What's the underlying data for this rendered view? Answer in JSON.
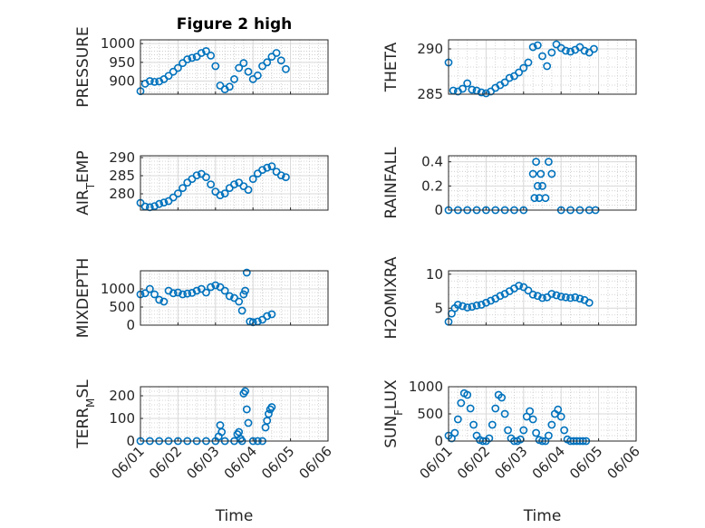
{
  "figure": {
    "title": "Figure 2 high"
  },
  "colors": {
    "marker": "#0072BD",
    "axis": "#262626",
    "grid": "#b0b0b0"
  },
  "chart_data": [
    {
      "type": "scatter",
      "id": "pressure",
      "ylabel": "PRESSURE",
      "title": "Figure 2 high",
      "ylim": [
        865,
        1010
      ],
      "yticks": [
        900,
        950,
        1000
      ],
      "x": [
        "06/01 00:00",
        "06/01 03:00",
        "06/01 06:00",
        "06/01 09:00",
        "06/01 12:00",
        "06/01 15:00",
        "06/01 18:00",
        "06/01 21:00",
        "06/02 00:00",
        "06/02 03:00",
        "06/02 06:00",
        "06/02 09:00",
        "06/02 12:00",
        "06/02 15:00",
        "06/02 18:00",
        "06/02 21:00",
        "06/03 00:00",
        "06/03 03:00",
        "06/03 06:00",
        "06/03 09:00",
        "06/03 12:00",
        "06/03 15:00",
        "06/03 18:00",
        "06/03 21:00",
        "06/04 00:00",
        "06/04 03:00",
        "06/04 06:00",
        "06/04 09:00",
        "06/04 12:00",
        "06/04 15:00",
        "06/04 18:00",
        "06/04 21:00"
      ],
      "y": [
        873,
        893,
        900,
        898,
        899,
        905,
        914,
        925,
        935,
        948,
        958,
        962,
        965,
        975,
        980,
        968,
        940,
        888,
        878,
        885,
        905,
        935,
        948,
        925,
        905,
        915,
        940,
        950,
        965,
        975,
        955,
        932
      ]
    },
    {
      "type": "scatter",
      "id": "theta",
      "ylabel": "THETA",
      "ylim": [
        285,
        291
      ],
      "yticks": [
        285,
        290
      ],
      "x": [
        "06/01 00:00",
        "06/01 03:00",
        "06/01 06:00",
        "06/01 09:00",
        "06/01 12:00",
        "06/01 15:00",
        "06/01 18:00",
        "06/01 21:00",
        "06/02 00:00",
        "06/02 03:00",
        "06/02 06:00",
        "06/02 09:00",
        "06/02 12:00",
        "06/02 15:00",
        "06/02 18:00",
        "06/02 21:00",
        "06/03 00:00",
        "06/03 03:00",
        "06/03 06:00",
        "06/03 09:00",
        "06/03 12:00",
        "06/03 15:00",
        "06/03 18:00",
        "06/03 21:00",
        "06/04 00:00",
        "06/04 03:00",
        "06/04 06:00",
        "06/04 09:00",
        "06/04 12:00",
        "06/04 15:00",
        "06/04 18:00",
        "06/04 21:00"
      ],
      "y": [
        288.5,
        285.4,
        285.3,
        285.6,
        286.2,
        285.5,
        285.4,
        285.2,
        285.1,
        285.3,
        285.7,
        286.0,
        286.3,
        286.8,
        287.0,
        287.4,
        287.9,
        288.5,
        290.2,
        290.4,
        289.2,
        288.1,
        289.6,
        290.5,
        290.1,
        289.8,
        289.7,
        289.9,
        290.2,
        289.8,
        289.6,
        290.0
      ]
    },
    {
      "type": "scatter",
      "id": "airtemp",
      "ylabel": "AIR_TEMP",
      "ylim": [
        275.5,
        290.5
      ],
      "yticks": [
        280,
        285,
        290
      ],
      "x": [
        "06/01 00:00",
        "06/01 03:00",
        "06/01 06:00",
        "06/01 09:00",
        "06/01 12:00",
        "06/01 15:00",
        "06/01 18:00",
        "06/01 21:00",
        "06/02 00:00",
        "06/02 03:00",
        "06/02 06:00",
        "06/02 09:00",
        "06/02 12:00",
        "06/02 15:00",
        "06/02 18:00",
        "06/02 21:00",
        "06/03 00:00",
        "06/03 03:00",
        "06/03 06:00",
        "06/03 09:00",
        "06/03 12:00",
        "06/03 15:00",
        "06/03 18:00",
        "06/03 21:00",
        "06/04 00:00",
        "06/04 03:00",
        "06/04 06:00",
        "06/04 09:00",
        "06/04 12:00",
        "06/04 15:00",
        "06/04 18:00",
        "06/04 21:00"
      ],
      "y": [
        277.5,
        276.5,
        276.3,
        276.6,
        277.2,
        277.6,
        278.0,
        279.0,
        280.1,
        281.6,
        283.1,
        284.1,
        285.1,
        285.5,
        284.6,
        282.6,
        280.6,
        279.6,
        280.1,
        281.6,
        282.6,
        283.1,
        282.1,
        281.1,
        284.1,
        285.6,
        286.6,
        287.2,
        287.6,
        286.1,
        285.1,
        284.6
      ]
    },
    {
      "type": "scatter",
      "id": "rainfall",
      "ylabel": "RAINFALL",
      "ylim": [
        0,
        0.45
      ],
      "yticks": [
        0,
        0.2,
        0.4
      ],
      "x": [
        "06/01 00:00",
        "06/01 06:00",
        "06/01 12:00",
        "06/01 18:00",
        "06/02 00:00",
        "06/02 06:00",
        "06/02 12:00",
        "06/02 18:00",
        "06/03 00:00",
        "06/03 06:00",
        "06/03 07:00",
        "06/03 08:00",
        "06/03 09:00",
        "06/03 10:00",
        "06/03 11:00",
        "06/03 12:00",
        "06/03 14:00",
        "06/03 16:00",
        "06/03 18:00",
        "06/04 00:00",
        "06/04 06:00",
        "06/04 12:00",
        "06/04 18:00",
        "06/04 22:00"
      ],
      "y": [
        0,
        0,
        0,
        0,
        0,
        0,
        0,
        0,
        0,
        0.3,
        0.1,
        0.4,
        0.2,
        0.1,
        0.3,
        0.2,
        0.1,
        0.4,
        0.3,
        0,
        0,
        0,
        0,
        0
      ]
    },
    {
      "type": "scatter",
      "id": "mixdepth",
      "ylabel": "MIXDEPTH",
      "ylim": [
        0,
        1500
      ],
      "yticks": [
        0,
        500,
        1000
      ],
      "x": [
        "06/01 00:00",
        "06/01 03:00",
        "06/01 06:00",
        "06/01 09:00",
        "06/01 12:00",
        "06/01 15:00",
        "06/01 18:00",
        "06/01 21:00",
        "06/02 00:00",
        "06/02 03:00",
        "06/02 06:00",
        "06/02 09:00",
        "06/02 12:00",
        "06/02 15:00",
        "06/02 18:00",
        "06/02 21:00",
        "06/03 00:00",
        "06/03 03:00",
        "06/03 06:00",
        "06/03 09:00",
        "06/03 12:00",
        "06/03 15:00",
        "06/03 17:00",
        "06/03 18:00",
        "06/03 19:00",
        "06/03 20:00",
        "06/03 22:00",
        "06/04 00:00",
        "06/04 03:00",
        "06/04 06:00",
        "06/04 09:00",
        "06/04 12:00"
      ],
      "y": [
        850,
        880,
        1000,
        850,
        700,
        650,
        950,
        880,
        900,
        850,
        870,
        890,
        950,
        1000,
        900,
        1050,
        1100,
        1050,
        950,
        800,
        750,
        650,
        400,
        850,
        950,
        1450,
        100,
        80,
        100,
        150,
        250,
        300
      ]
    },
    {
      "type": "scatter",
      "id": "h2omixra",
      "ylabel": "H2OMIXRA",
      "ylim": [
        2.5,
        10.5
      ],
      "yticks": [
        5,
        10
      ],
      "x": [
        "06/01 00:00",
        "06/01 02:00",
        "06/01 04:00",
        "06/01 06:00",
        "06/01 09:00",
        "06/01 12:00",
        "06/01 15:00",
        "06/01 18:00",
        "06/01 21:00",
        "06/02 00:00",
        "06/02 03:00",
        "06/02 06:00",
        "06/02 09:00",
        "06/02 12:00",
        "06/02 15:00",
        "06/02 18:00",
        "06/02 21:00",
        "06/03 00:00",
        "06/03 03:00",
        "06/03 06:00",
        "06/03 09:00",
        "06/03 12:00",
        "06/03 15:00",
        "06/03 18:00",
        "06/03 21:00",
        "06/04 00:00",
        "06/04 03:00",
        "06/04 06:00",
        "06/04 09:00",
        "06/04 12:00",
        "06/04 15:00",
        "06/04 18:00"
      ],
      "y": [
        3.0,
        4.2,
        5.0,
        5.5,
        5.3,
        5.1,
        5.2,
        5.4,
        5.5,
        5.8,
        6.1,
        6.4,
        6.8,
        7.1,
        7.5,
        7.9,
        8.3,
        8.1,
        7.6,
        7.0,
        6.8,
        6.5,
        6.6,
        7.1,
        6.9,
        6.7,
        6.6,
        6.5,
        6.6,
        6.4,
        6.2,
        5.8
      ]
    },
    {
      "type": "scatter",
      "id": "terrmsl",
      "ylabel": "TERR_MSL",
      "ylim": [
        0,
        240
      ],
      "yticks": [
        0,
        100,
        200
      ],
      "x": [
        "06/01 00:00",
        "06/01 06:00",
        "06/01 12:00",
        "06/01 18:00",
        "06/02 00:00",
        "06/02 06:00",
        "06/02 12:00",
        "06/02 18:00",
        "06/03 00:00",
        "06/03 02:00",
        "06/03 03:00",
        "06/03 04:00",
        "06/03 06:00",
        "06/03 12:00",
        "06/03 14:00",
        "06/03 15:00",
        "06/03 16:00",
        "06/03 17:00",
        "06/03 18:00",
        "06/03 19:00",
        "06/03 20:00",
        "06/03 21:00",
        "06/04 00:00",
        "06/04 03:00",
        "06/04 06:00",
        "06/04 08:00",
        "06/04 09:00",
        "06/04 10:00",
        "06/04 11:00",
        "06/04 12:00"
      ],
      "y": [
        0,
        0,
        0,
        0,
        0,
        0,
        0,
        0,
        0,
        20,
        70,
        40,
        0,
        0,
        30,
        40,
        10,
        0,
        210,
        220,
        140,
        80,
        0,
        0,
        0,
        60,
        90,
        120,
        140,
        150
      ]
    },
    {
      "type": "scatter",
      "id": "sunflux",
      "ylabel": "SUN_FLUX",
      "ylim": [
        0,
        1000
      ],
      "yticks": [
        0,
        500,
        1000
      ],
      "x": [
        "06/01 00:00",
        "06/01 02:00",
        "06/01 04:00",
        "06/01 06:00",
        "06/01 08:00",
        "06/01 10:00",
        "06/01 12:00",
        "06/01 14:00",
        "06/01 16:00",
        "06/01 18:00",
        "06/01 20:00",
        "06/01 22:00",
        "06/02 00:00",
        "06/02 02:00",
        "06/02 04:00",
        "06/02 06:00",
        "06/02 08:00",
        "06/02 10:00",
        "06/02 12:00",
        "06/02 14:00",
        "06/02 16:00",
        "06/02 18:00",
        "06/02 20:00",
        "06/02 22:00",
        "06/03 00:00",
        "06/03 02:00",
        "06/03 04:00",
        "06/03 06:00",
        "06/03 08:00",
        "06/03 10:00",
        "06/03 12:00",
        "06/03 14:00",
        "06/03 16:00",
        "06/03 18:00",
        "06/03 20:00",
        "06/03 22:00",
        "06/04 00:00",
        "06/04 02:00",
        "06/04 04:00",
        "06/04 06:00",
        "06/04 08:00",
        "06/04 10:00",
        "06/04 12:00",
        "06/04 14:00",
        "06/04 16:00"
      ],
      "y": [
        100,
        50,
        150,
        400,
        700,
        880,
        850,
        600,
        300,
        100,
        20,
        0,
        0,
        50,
        300,
        600,
        850,
        800,
        500,
        200,
        50,
        0,
        0,
        30,
        200,
        450,
        550,
        400,
        150,
        20,
        0,
        0,
        100,
        300,
        500,
        580,
        450,
        200,
        30,
        0,
        0,
        0,
        0,
        0,
        0
      ]
    }
  ],
  "axes_common": {
    "xlim": [
      "06/01",
      "06/06"
    ],
    "xticks": [
      "06/01",
      "06/02",
      "06/03",
      "06/04",
      "06/05",
      "06/06"
    ],
    "xlabel": "Time"
  }
}
